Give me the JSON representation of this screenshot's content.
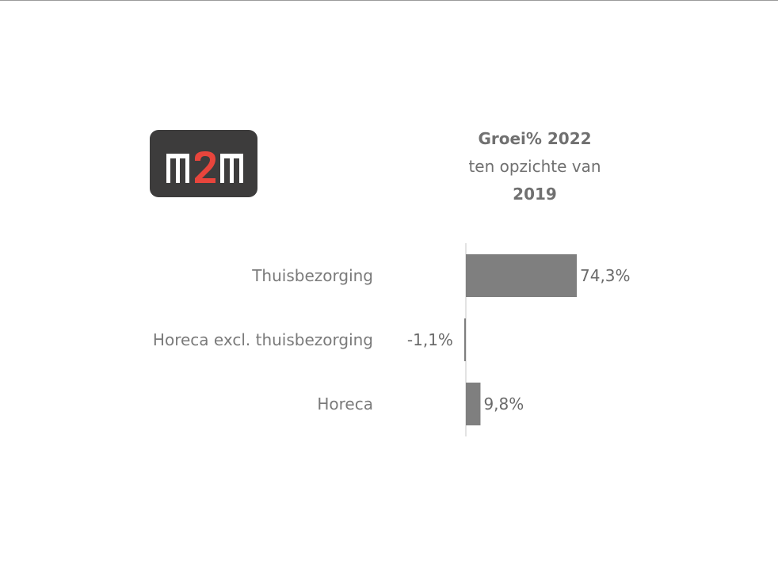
{
  "logo": {
    "text": "m2m",
    "colors": {
      "background": "#3d3c3c",
      "letters": "#ffffff",
      "accent": "#e8453c"
    }
  },
  "title": {
    "line1": "Groei% 2022",
    "line2": "ten opzichte van",
    "line3": "2019"
  },
  "chart_data": {
    "type": "bar",
    "orientation": "horizontal",
    "title": "Groei% 2022 ten opzichte van 2019",
    "categories": [
      "Thuisbezorging",
      "Horeca excl. thuisbezorging",
      "Horeca"
    ],
    "values": [
      74.3,
      -1.1,
      9.8
    ],
    "value_labels": [
      "74,3%",
      "-1,1%",
      "9,8%"
    ],
    "unit": "%",
    "xlim": [
      -1.1,
      74.3
    ],
    "bar_color": "#7f7f7f",
    "axis_color": "#d0d0d0",
    "grid": false,
    "legend": "none"
  }
}
